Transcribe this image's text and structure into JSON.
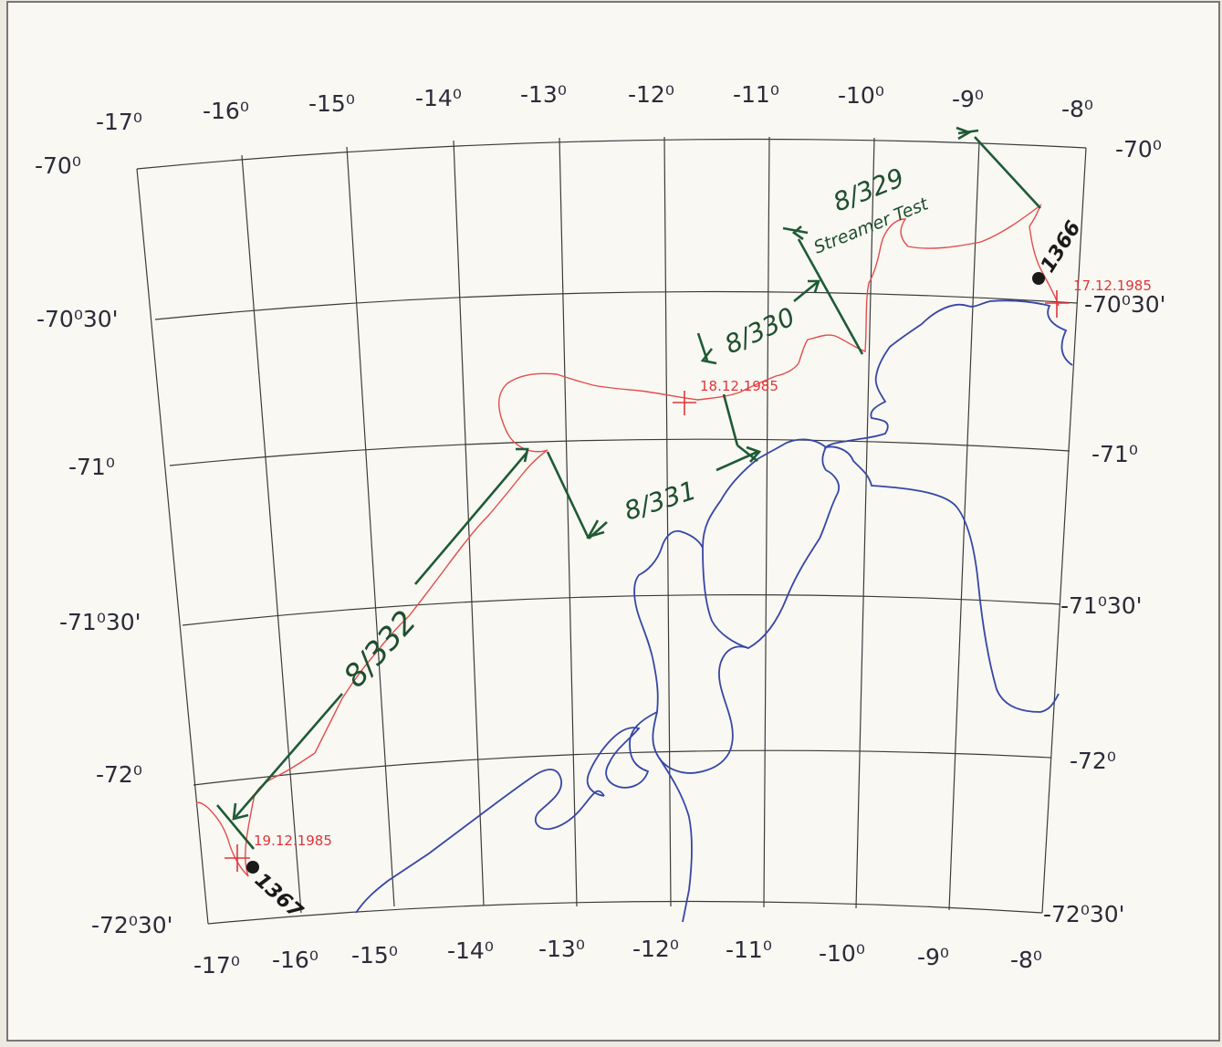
{
  "map": {
    "longitude_labels_top": [
      "-17⁰",
      "-16⁰",
      "-15⁰",
      "-14⁰",
      "-13⁰",
      "-12⁰",
      "-11⁰",
      "-10⁰",
      "-9⁰",
      "-8⁰"
    ],
    "longitude_labels_bottom": [
      "-17⁰",
      "-16⁰",
      "-15⁰",
      "-14⁰",
      "-13⁰",
      "-12⁰",
      "-11⁰",
      "-10⁰",
      "-9⁰",
      "-8⁰"
    ],
    "latitude_labels_left": [
      "-70⁰",
      "-70⁰30'",
      "-71⁰",
      "-71⁰30'",
      "-72⁰",
      "-72⁰30'"
    ],
    "latitude_labels_right": [
      "-70⁰",
      "-70⁰30'",
      "-71⁰",
      "-71⁰30'",
      "-72⁰",
      "-72⁰30'"
    ],
    "dates": {
      "d1712": "17.12.1985",
      "d1812": "18.12.1985",
      "d1912": "19.12.1985"
    },
    "stations": {
      "s1366": "1366",
      "s1367": "1367"
    },
    "profiles": {
      "p329": "8/329",
      "p329_note": "Streamer Test",
      "p330": "8/330",
      "p331": "8/331",
      "p332": "8/332"
    },
    "colors": {
      "ship_track": "#e24d4d",
      "coastline": "#3646a6",
      "profile_annotations": "#1f5a35",
      "graticule": "#3b3b3b"
    }
  }
}
